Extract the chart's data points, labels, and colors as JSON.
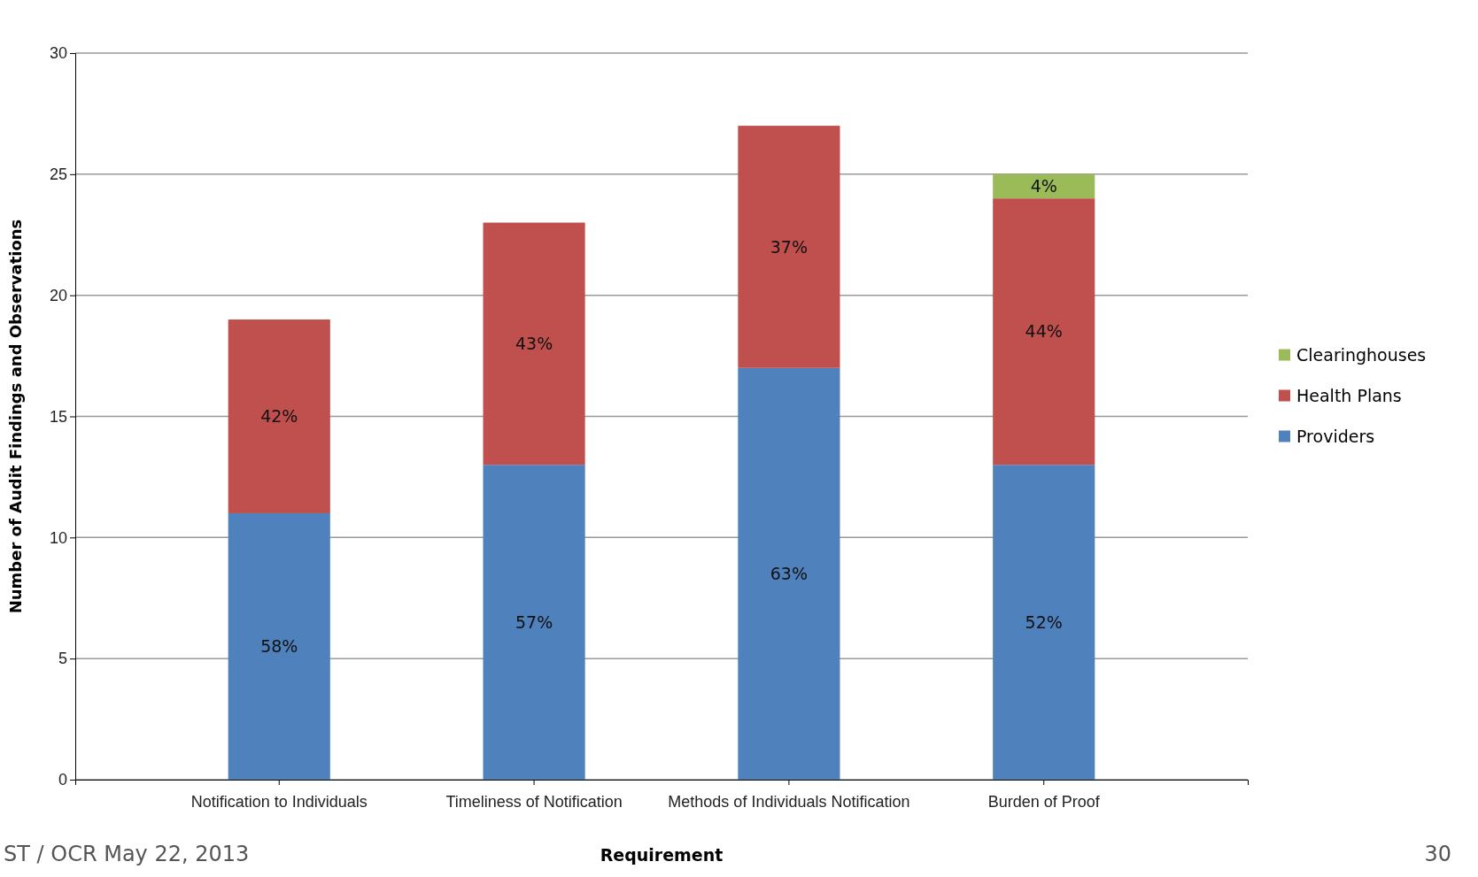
{
  "chart_data": {
    "type": "bar",
    "stacked": true,
    "categories": [
      "Notification to Individuals",
      "Timeliness of Notification",
      "Methods of Individuals Notification",
      "Burden of Proof"
    ],
    "series": [
      {
        "name": "Providers",
        "color": "#4f81bd",
        "values": [
          11,
          13,
          17,
          13
        ]
      },
      {
        "name": "Health Plans",
        "color": "#c0504d",
        "values": [
          8,
          10,
          10,
          11
        ]
      },
      {
        "name": "Clearinghouses",
        "color": "#9bbb59",
        "values": [
          null,
          null,
          null,
          1
        ]
      }
    ],
    "ylim": [
      0,
      30
    ],
    "yticks": [
      0,
      5,
      10,
      15,
      20,
      25,
      30
    ],
    "grid": "y",
    "legend": "right",
    "xlabel": "Requirement",
    "ylabel": "Number of Audit Findings and Observations",
    "annotations": [
      "ST / OCR May 22, 2013",
      "30",
      "58%",
      "57%",
      "63%",
      "52%",
      "42%",
      "43%",
      "37%",
      "44%",
      "4%"
    ]
  }
}
